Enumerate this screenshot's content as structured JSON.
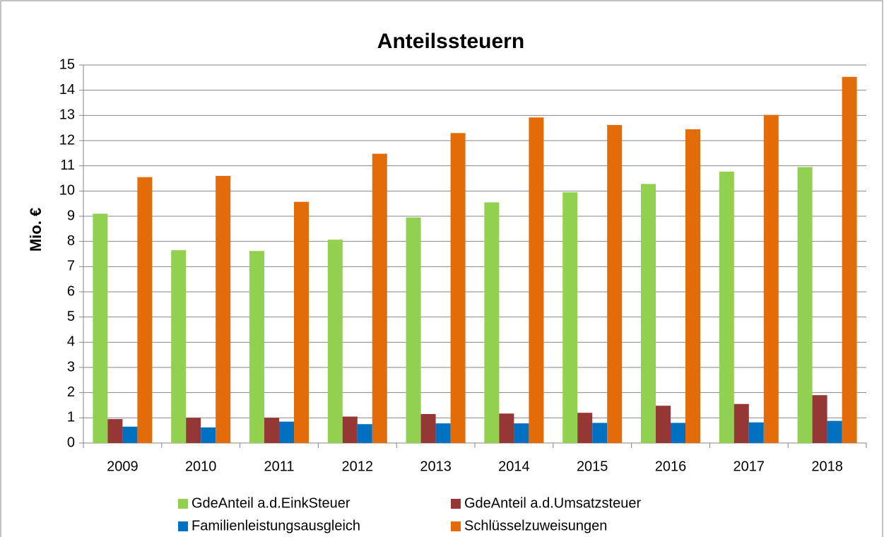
{
  "chart_data": {
    "type": "bar",
    "title": "Anteilssteuern",
    "y_label": "Mio. €",
    "categories": [
      "2009",
      "2010",
      "2011",
      "2012",
      "2013",
      "2014",
      "2015",
      "2016",
      "2017",
      "2018"
    ],
    "series": [
      {
        "name": "GdeAnteil a.d.EinkSteuer",
        "color": "#92d050",
        "values": [
          9.1,
          7.65,
          7.62,
          8.07,
          8.95,
          9.55,
          9.95,
          10.28,
          10.77,
          10.95
        ]
      },
      {
        "name": "GdeAnteil a.d.Umsatzsteuer",
        "color": "#953735",
        "values": [
          0.95,
          1.0,
          1.0,
          1.05,
          1.15,
          1.17,
          1.2,
          1.48,
          1.55,
          1.9
        ]
      },
      {
        "name": "Familienleistungsausgleich",
        "color": "#0070c0",
        "values": [
          0.65,
          0.62,
          0.85,
          0.75,
          0.78,
          0.78,
          0.8,
          0.8,
          0.82,
          0.88
        ]
      },
      {
        "name": "Schlüsselzuweisungen",
        "color": "#e36c09",
        "values": [
          10.55,
          10.6,
          9.57,
          11.48,
          12.3,
          12.92,
          12.62,
          12.45,
          13.02,
          14.53
        ]
      }
    ],
    "ylim": [
      0,
      15
    ],
    "yticks": [
      0,
      1,
      2,
      3,
      4,
      5,
      6,
      7,
      8,
      9,
      10,
      11,
      12,
      13,
      14,
      15
    ],
    "grid": true,
    "legend": "bottom"
  }
}
